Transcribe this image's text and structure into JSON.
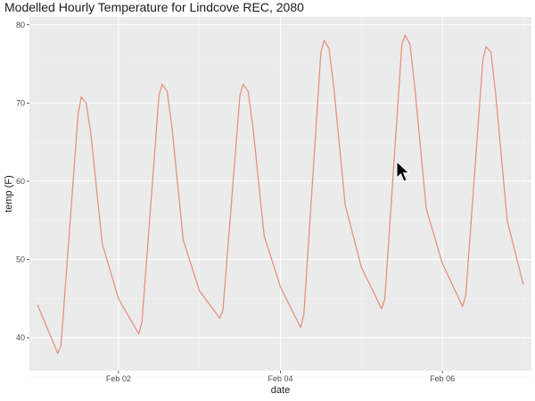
{
  "chart_data": {
    "type": "line",
    "title": "Modelled Hourly Temperature for Lindcove REC, 2080",
    "xlabel": "date",
    "ylabel": "temp (F)",
    "x_tick_labels": [
      "Feb 02",
      "Feb 04",
      "Feb 06"
    ],
    "x_ticks_days": [
      2,
      4,
      6
    ],
    "xlim_days": [
      0.9,
      7.1
    ],
    "y_ticks": [
      40,
      50,
      60,
      70,
      80
    ],
    "ylim": [
      35.8,
      81
    ],
    "grid": true,
    "legend": "none",
    "colors": {
      "line": "#E5927F",
      "panel": "#EBEBEB",
      "grid_major": "#FFFFFF",
      "grid_minor": "#F4F4F4"
    },
    "series": [
      {
        "x_days": [
          1.0,
          1.25,
          1.29,
          1.5,
          1.54,
          1.6,
          1.66,
          1.8,
          2.0,
          2.25,
          2.29,
          2.5,
          2.54,
          2.6,
          2.66,
          2.8,
          3.0,
          3.25,
          3.29,
          3.5,
          3.54,
          3.6,
          3.66,
          3.8,
          4.0,
          4.25,
          4.29,
          4.5,
          4.54,
          4.6,
          4.66,
          4.8,
          5.0,
          5.25,
          5.29,
          5.5,
          5.54,
          5.6,
          5.66,
          5.8,
          6.0,
          6.25,
          6.29,
          6.5,
          6.54,
          6.6,
          6.66,
          6.8,
          7.0
        ],
        "values": [
          44.2,
          38.0,
          39.0,
          68.5,
          70.8,
          70.0,
          66.0,
          52.0,
          45.0,
          40.5,
          42.0,
          71.0,
          72.4,
          71.5,
          67.0,
          52.5,
          46.0,
          42.5,
          43.5,
          71.0,
          72.4,
          71.5,
          67.0,
          53.0,
          46.5,
          41.3,
          43.0,
          76.5,
          78.0,
          77.0,
          72.0,
          57.0,
          49.0,
          43.7,
          45.0,
          77.5,
          78.7,
          77.5,
          72.0,
          56.5,
          49.5,
          44.0,
          45.5,
          75.5,
          77.2,
          76.5,
          71.0,
          55.0,
          46.8
        ]
      }
    ]
  }
}
